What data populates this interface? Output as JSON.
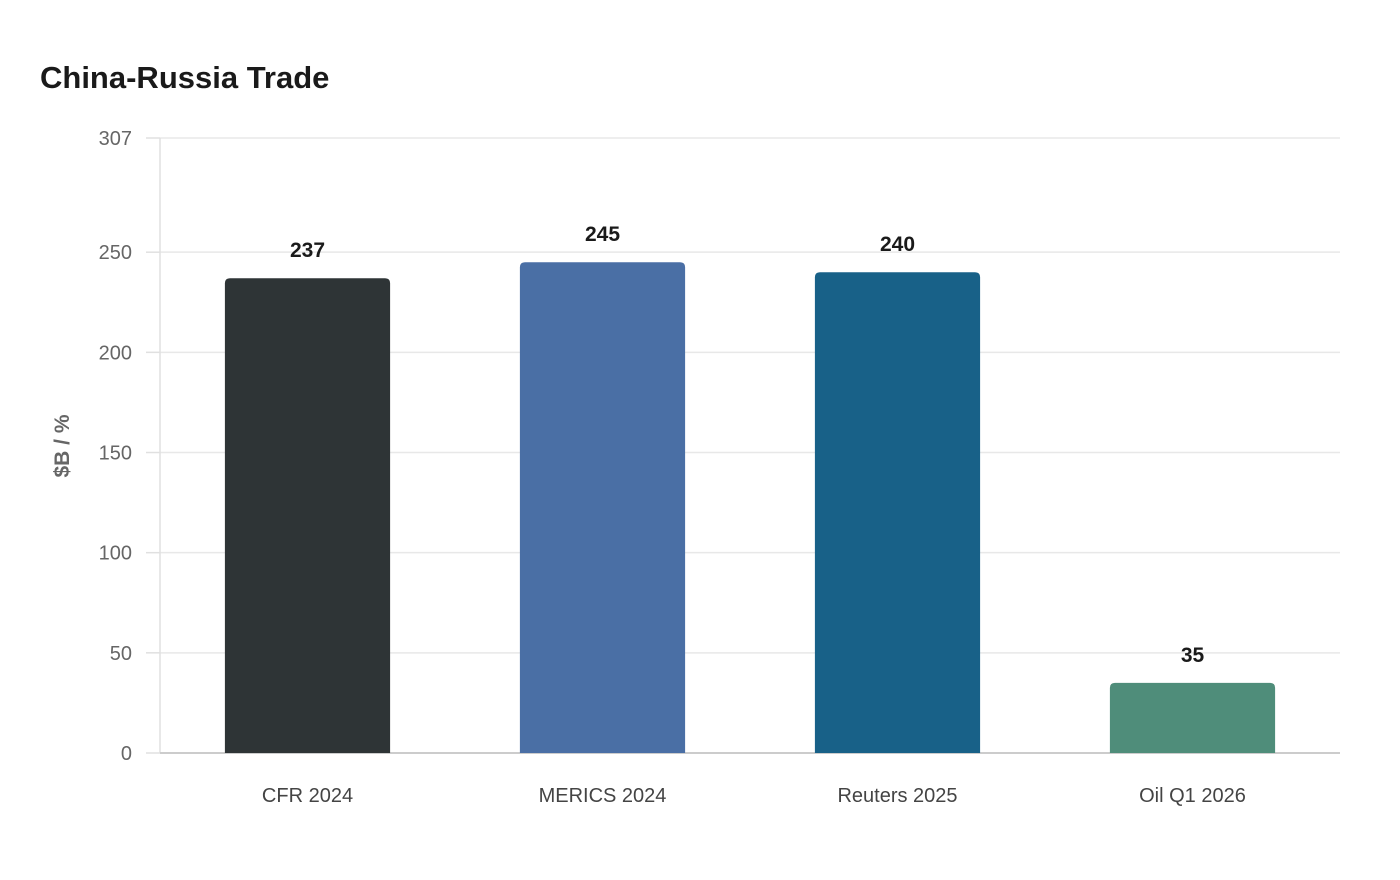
{
  "chart_data": {
    "type": "bar",
    "title": "China-Russia Trade",
    "xlabel": "",
    "ylabel": "$B / %",
    "categories": [
      "CFR 2024",
      "MERICS 2024",
      "Reuters 2025",
      "Oil Q1 2026"
    ],
    "values": [
      237,
      245,
      240,
      35
    ],
    "data_labels": [
      "237",
      "245",
      "240",
      "35"
    ],
    "colors": [
      "#2e3436",
      "#4a6fa5",
      "#186188",
      "#4f8d7a"
    ],
    "ylim": [
      0,
      307
    ],
    "yticks": [
      0,
      50,
      100,
      150,
      200,
      250,
      307
    ],
    "grid": true,
    "legend": "none"
  }
}
